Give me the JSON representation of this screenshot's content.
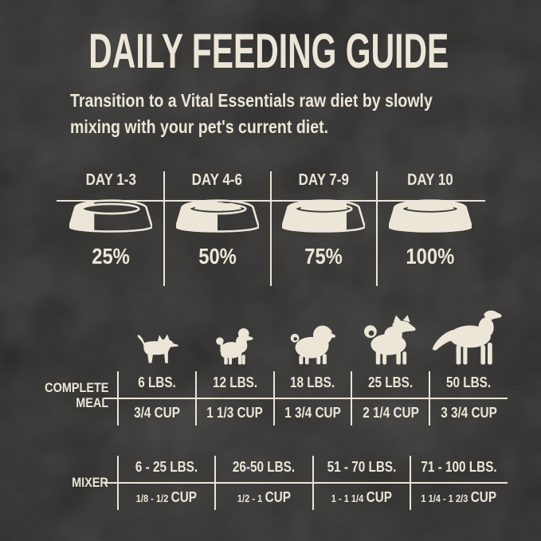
{
  "page": {
    "title": "DAILY FEEDING GUIDE",
    "subtitle_lines": [
      "Transition to a Vital Essentials raw diet by slowly",
      "mixing with your pet's current diet."
    ]
  },
  "colors": {
    "background": "#242322",
    "cream": "#EAE3D4"
  },
  "transition": {
    "columns": [
      {
        "day": "DAY 1-3",
        "percent": "25%",
        "fill": 0.3,
        "icon": "bowl-25-icon"
      },
      {
        "day": "DAY 4-6",
        "percent": "50%",
        "fill": 0.5,
        "icon": "bowl-50-icon"
      },
      {
        "day": "DAY 7-9",
        "percent": "75%",
        "fill": 0.78,
        "icon": "bowl-75-icon"
      },
      {
        "day": "DAY 10",
        "percent": "100%",
        "fill": 1,
        "icon": "bowl-100-icon"
      }
    ]
  },
  "dogs": [
    {
      "icon": "chihuahua-icon"
    },
    {
      "icon": "poodle-icon"
    },
    {
      "icon": "pug-icon"
    },
    {
      "icon": "shiba-inu-icon"
    },
    {
      "icon": "large-dog-icon"
    }
  ],
  "complete_meal": {
    "label_lines": [
      "COMPLETE",
      "MEAL"
    ],
    "columns": [
      {
        "weight": "6 LBS.",
        "amount": "3/4 CUP"
      },
      {
        "weight": "12 LBS.",
        "amount": "1 1/3 CUP"
      },
      {
        "weight": "18 LBS.",
        "amount": "1 3/4 CUP"
      },
      {
        "weight": "25 LBS.",
        "amount": "2 1/4 CUP"
      },
      {
        "weight": "50 LBS.",
        "amount": "3 3/4 CUP"
      }
    ]
  },
  "mixer": {
    "label": "MIXER",
    "columns": [
      {
        "weight": "6 - 25 LBS.",
        "range": "1/8 - 1/2",
        "unit": "CUP"
      },
      {
        "weight": "26-50 LBS.",
        "range": "1/2 - 1",
        "unit": "CUP"
      },
      {
        "weight": "51 - 70 LBS.",
        "range": "1 - 1 1/4",
        "unit": "CUP"
      },
      {
        "weight": "71 - 100 LBS.",
        "range": "1 1/4 - 1 2/3",
        "unit": "CUP"
      }
    ]
  }
}
